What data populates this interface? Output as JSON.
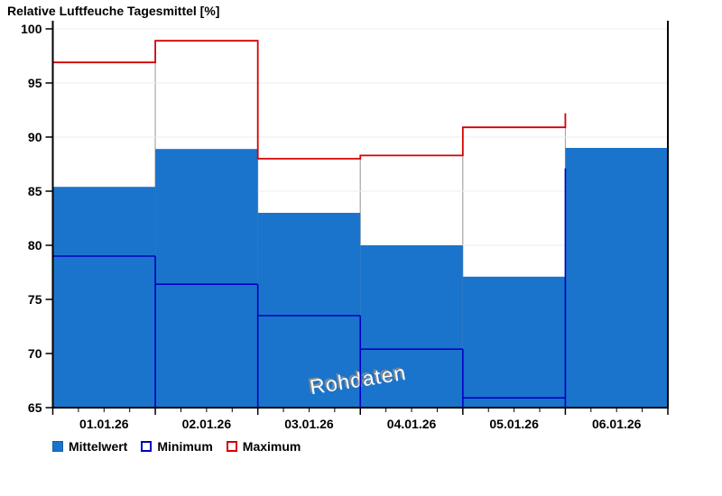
{
  "title": "Relative Luftfeuche Tagesmittel [%]",
  "watermark": "Rohdaten",
  "legend": {
    "items": [
      {
        "label": "Mittelwert",
        "swatch": "fill-mean"
      },
      {
        "label": "Minimum",
        "swatch": "outline-min"
      },
      {
        "label": "Maximum",
        "swatch": "outline-max"
      }
    ]
  },
  "colors": {
    "mean_bar": "#1b74cb",
    "min_line": "#0000c3",
    "max_line": "#d40000",
    "max_box_fill": "#ffffff",
    "max_box_border": "#9e9e9e",
    "gridline": "#ececec",
    "axis": "#000000",
    "watermark_fill": "#ffffff",
    "watermark_shadow": "#8a8a8a"
  },
  "chart_data": {
    "type": "bar",
    "title": "Relative Luftfeuche Tagesmittel [%]",
    "categories": [
      "01.01.26",
      "02.01.26",
      "03.01.26",
      "04.01.26",
      "05.01.26",
      "06.01.26"
    ],
    "series": [
      {
        "name": "Mittelwert",
        "style": "filled-bar",
        "values": [
          85.4,
          88.9,
          83.0,
          80.0,
          77.1,
          89.0
        ]
      },
      {
        "name": "Minimum",
        "style": "step-line",
        "values": [
          79.0,
          76.4,
          73.5,
          70.4,
          65.9,
          null
        ],
        "trailing_edge_value": 87.1
      },
      {
        "name": "Maximum",
        "style": "step-line-white-box",
        "values": [
          96.9,
          98.9,
          88.0,
          88.3,
          90.9,
          null
        ],
        "trailing_edge_value": 92.2
      }
    ],
    "ylim": [
      65,
      100
    ],
    "yticks": [
      65,
      70,
      75,
      80,
      85,
      90,
      95,
      100
    ],
    "x_minor_ticks_per_interval": 3,
    "grid": "horizontal",
    "legend_position": "bottom-left",
    "annotations": [
      {
        "text": "Rohdaten",
        "style": "embossed-watermark",
        "rotation_deg": -9
      }
    ]
  }
}
